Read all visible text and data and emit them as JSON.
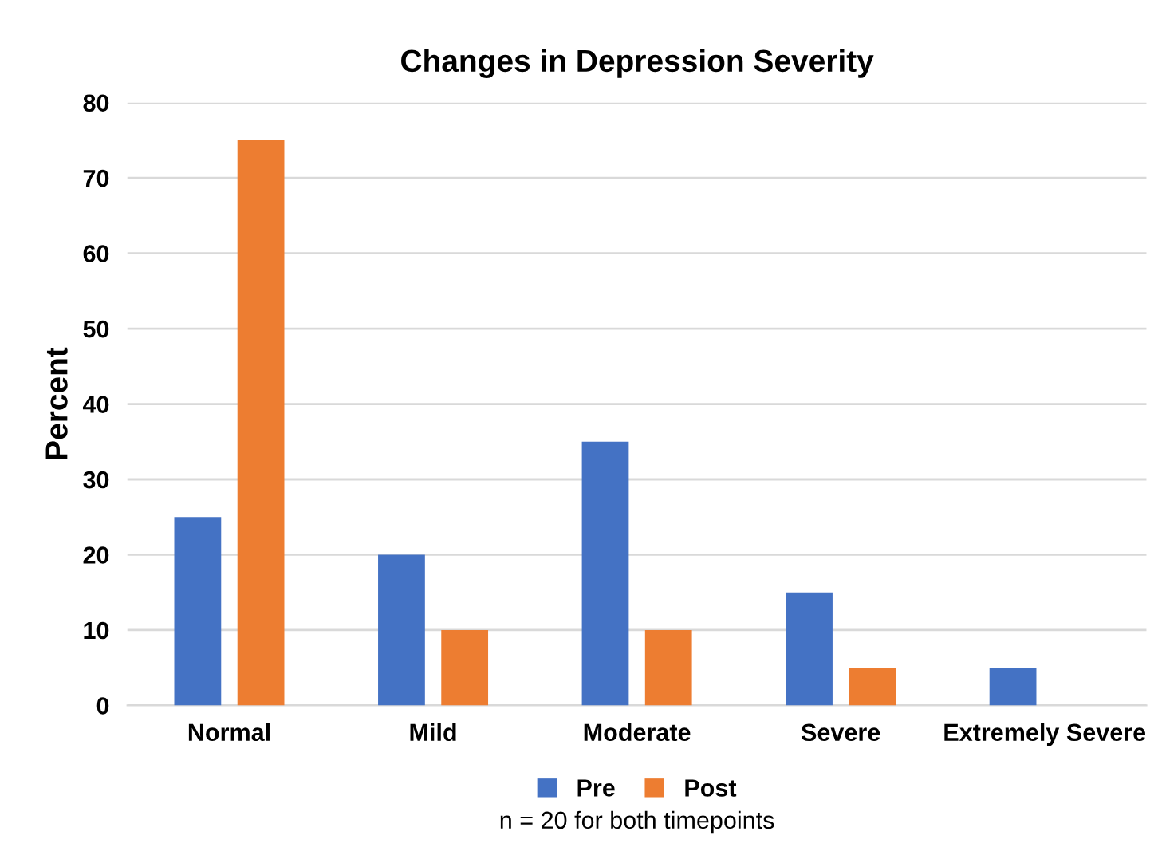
{
  "chart_data": {
    "type": "bar",
    "title": "Changes in Depression Severity",
    "ylabel": "Percent",
    "categories": [
      "Normal",
      "Mild",
      "Moderate",
      "Severe",
      "Extremely Severe"
    ],
    "series": [
      {
        "name": "Pre",
        "color": "#4472c4",
        "values": [
          25,
          20,
          35,
          15,
          5
        ]
      },
      {
        "name": "Post",
        "color": "#ed7d31",
        "values": [
          75,
          10,
          10,
          5,
          0
        ]
      }
    ],
    "ylim": [
      0,
      80
    ],
    "yticks": [
      0,
      10,
      20,
      30,
      40,
      50,
      60,
      70,
      80
    ],
    "grid": "y",
    "legend": "bottom",
    "annotations": [
      "n = 20 for both timepoints"
    ]
  }
}
